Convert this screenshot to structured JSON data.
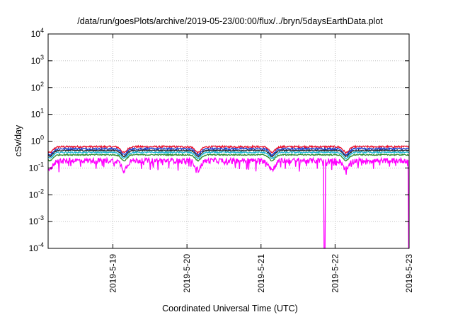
{
  "chart_data": {
    "type": "line",
    "title": "/data/run/goesPlots/archive/2019-05-23/00:00/flux/../bryn/5daysEarthData.plot",
    "xlabel": "Coordinated Universal Time (UTC)",
    "ylabel": "cSv/day",
    "yscale": "log",
    "ylim": [
      0.0001,
      10000
    ],
    "xlim": [
      "2019-05-18T03:00",
      "2019-05-23T00:00"
    ],
    "y_ticks": [
      {
        "base": "10",
        "exp": "4",
        "value": 10000
      },
      {
        "base": "10",
        "exp": "3",
        "value": 1000
      },
      {
        "base": "10",
        "exp": "2",
        "value": 100
      },
      {
        "base": "10",
        "exp": "1",
        "value": 10
      },
      {
        "base": "10",
        "exp": "0",
        "value": 1
      },
      {
        "base": "10",
        "exp": "-1",
        "value": 0.1
      },
      {
        "base": "10",
        "exp": "-2",
        "value": 0.01
      },
      {
        "base": "10",
        "exp": "-3",
        "value": 0.001
      },
      {
        "base": "10",
        "exp": "-4",
        "value": 0.0001
      }
    ],
    "x_ticks": [
      {
        "label": "2019-5-19",
        "value": "2019-05-19T00:00"
      },
      {
        "label": "2019-5-20",
        "value": "2019-05-20T00:00"
      },
      {
        "label": "2019-5-21",
        "value": "2019-05-21T00:00"
      },
      {
        "label": "2019-5-22",
        "value": "2019-05-22T00:00"
      },
      {
        "label": "2019-5-23",
        "value": "2019-05-23T00:00"
      }
    ],
    "grid": true,
    "series": [
      {
        "color": "#e8112d",
        "level": 0.62,
        "noise": 0.16,
        "trough": 0.4,
        "dropouts": []
      },
      {
        "color": "#1f3fd0",
        "level": 0.52,
        "noise": 0.15,
        "trough": 0.4,
        "dropouts": []
      },
      {
        "color": "#2a2a2a",
        "level": 0.45,
        "noise": 0.1,
        "trough": 0.4,
        "dropouts": []
      },
      {
        "color": "#1fb8d8",
        "level": 0.38,
        "noise": 0.12,
        "trough": 0.4,
        "dropouts": []
      },
      {
        "color": "#2e8b2e",
        "level": 0.31,
        "noise": 0.1,
        "trough": 0.4,
        "dropouts": []
      },
      {
        "color": "#ff00ff",
        "level": 0.19,
        "noise": 0.45,
        "trough": 0.55,
        "dropouts": [
          "2019-05-21T20:40",
          "2019-05-23T00:00"
        ]
      }
    ]
  }
}
